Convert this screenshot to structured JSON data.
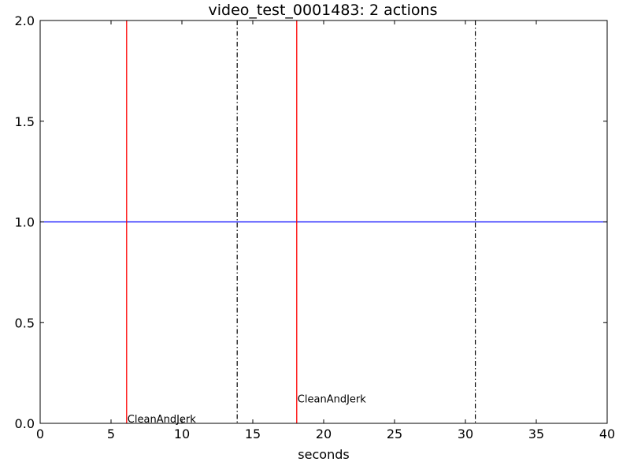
{
  "chart_data": {
    "type": "line",
    "title": "video_test_0001483: 2 actions",
    "xlabel": "seconds",
    "ylabel": "",
    "xlim": [
      0,
      40
    ],
    "ylim": [
      0.0,
      2.0
    ],
    "xticks": [
      0,
      5,
      10,
      15,
      20,
      25,
      30,
      35,
      40
    ],
    "xtick_labels": [
      "0",
      "5",
      "10",
      "15",
      "20",
      "25",
      "30",
      "35",
      "40"
    ],
    "yticks": [
      0.0,
      0.5,
      1.0,
      1.5,
      2.0
    ],
    "ytick_labels": [
      "0.0",
      "0.5",
      "1.0",
      "1.5",
      "2.0"
    ],
    "grid": false,
    "series": [
      {
        "x": [
          0,
          40
        ],
        "y": [
          1.0,
          1.0
        ],
        "color": "#0000ff"
      }
    ],
    "action_starts": [
      {
        "x": 6.1,
        "label": "CleanAndJerk",
        "label_y": 0.0,
        "color": "#ff0000"
      },
      {
        "x": 18.1,
        "label": "CleanAndJerk",
        "label_y": 0.1,
        "color": "#ff0000"
      }
    ],
    "action_ends": [
      {
        "x": 13.9,
        "color": "#000000"
      },
      {
        "x": 30.7,
        "color": "#000000"
      }
    ]
  }
}
